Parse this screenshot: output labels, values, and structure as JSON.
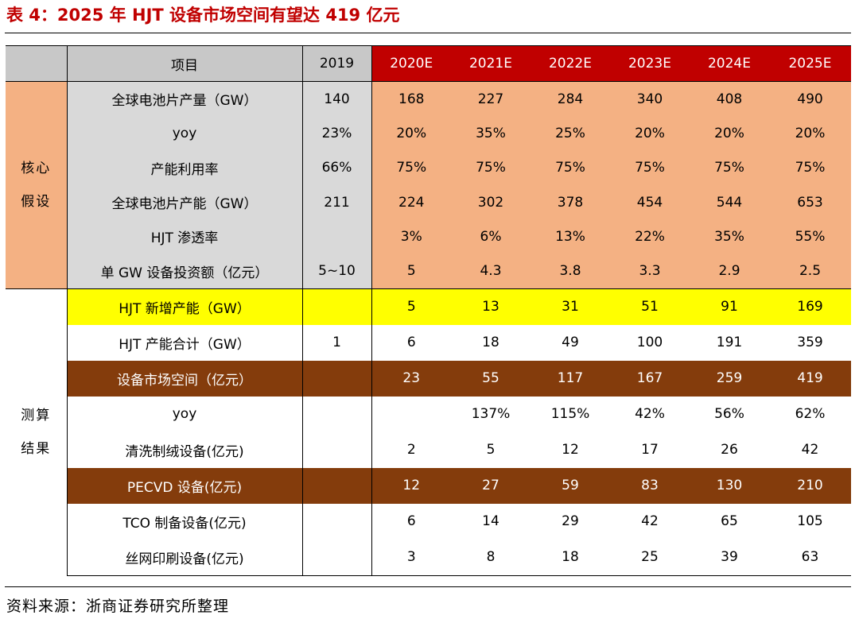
{
  "title": "表 4：2025 年 HJT 设备市场空间有望达 419 亿元",
  "table": {
    "headers": [
      "",
      "项目",
      "2019",
      "2020E",
      "2021E",
      "2022E",
      "2023E",
      "2024E",
      "2025E"
    ],
    "groups": {
      "core": "核心\n假设",
      "calc": "测算\n结果"
    },
    "rows": [
      {
        "label": "全球电池片产量（GW）",
        "values": [
          "140",
          "168",
          "227",
          "284",
          "340",
          "408",
          "490"
        ]
      },
      {
        "label": "yoy",
        "values": [
          "23%",
          "20%",
          "35%",
          "25%",
          "20%",
          "20%",
          "20%"
        ]
      },
      {
        "label": "产能利用率",
        "values": [
          "66%",
          "75%",
          "75%",
          "75%",
          "75%",
          "75%",
          "75%"
        ]
      },
      {
        "label": "全球电池片产能（GW）",
        "values": [
          "211",
          "224",
          "302",
          "378",
          "454",
          "544",
          "653"
        ]
      },
      {
        "label": "HJT 渗透率",
        "values": [
          "",
          "3%",
          "6%",
          "13%",
          "22%",
          "35%",
          "55%"
        ]
      },
      {
        "label": "单 GW 设备投资额（亿元）",
        "values": [
          "5~10",
          "5",
          "4.3",
          "3.8",
          "3.3",
          "2.9",
          "2.5"
        ]
      },
      {
        "label": "HJT 新增产能（GW）",
        "values": [
          "",
          "5",
          "13",
          "31",
          "51",
          "91",
          "169"
        ]
      },
      {
        "label": "HJT 产能合计（GW）",
        "values": [
          "1",
          "6",
          "18",
          "49",
          "100",
          "191",
          "359"
        ]
      },
      {
        "label": "设备市场空间（亿元）",
        "values": [
          "",
          "23",
          "55",
          "117",
          "167",
          "259",
          "419"
        ]
      },
      {
        "label": "yoy",
        "values": [
          "",
          "",
          "137%",
          "115%",
          "42%",
          "56%",
          "62%"
        ]
      },
      {
        "label": "清洗制绒设备(亿元)",
        "values": [
          "",
          "2",
          "5",
          "12",
          "17",
          "26",
          "42"
        ]
      },
      {
        "label": "PECVD 设备(亿元)",
        "values": [
          "",
          "12",
          "27",
          "59",
          "83",
          "130",
          "210"
        ]
      },
      {
        "label": "TCO 制备设备(亿元)",
        "values": [
          "",
          "6",
          "14",
          "29",
          "42",
          "65",
          "105"
        ]
      },
      {
        "label": "丝网印刷设备(亿元)",
        "values": [
          "",
          "3",
          "8",
          "18",
          "25",
          "39",
          "63"
        ]
      }
    ]
  },
  "source": "资料来源：浙商证券研究所整理",
  "colors": {
    "title_red": "#c00000",
    "header_gray": "#c8c8c8",
    "header_red": "#c00000",
    "peach": "#f4b183",
    "light_gray": "#d9d9d9",
    "yellow": "#ffff00",
    "brown": "#843c0c"
  }
}
